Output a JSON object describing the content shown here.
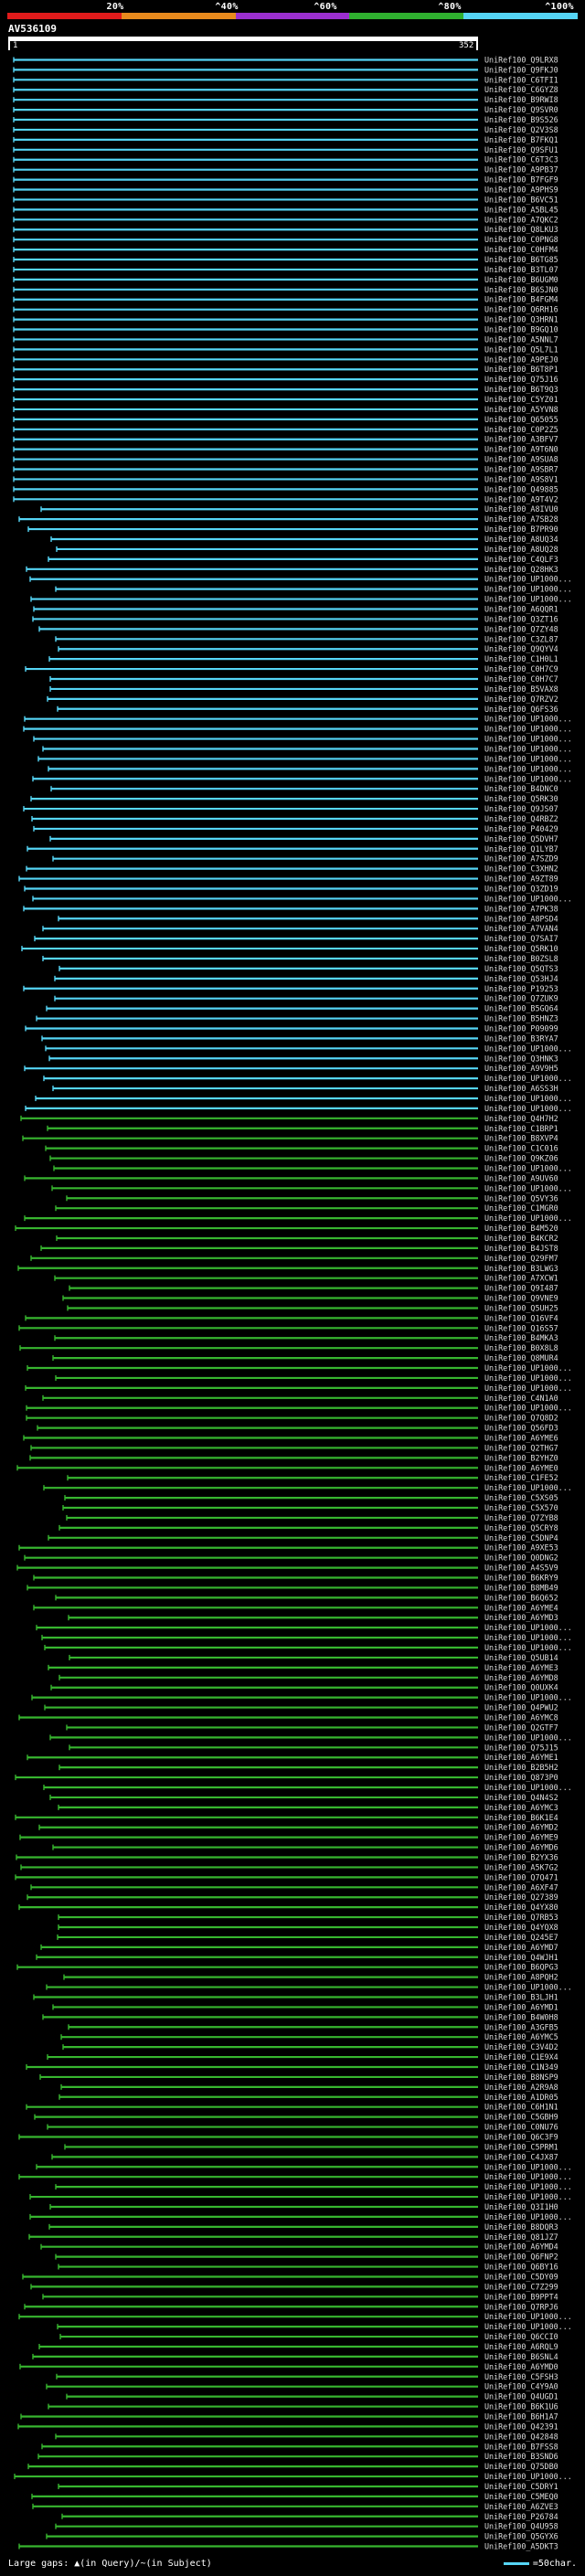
{
  "identity_scale": {
    "labels": [
      "20%",
      "^40%",
      "^60%",
      "^80%",
      "^100%"
    ],
    "colors": [
      "#e01b1b",
      "#e88a1d",
      "#9b2fcf",
      "#2fb02f",
      "#55d5f5"
    ]
  },
  "query": {
    "id": "AV536109",
    "start": "1",
    "end": "352"
  },
  "colors": {
    "cyan": "#55d5f5",
    "green": "#37b52f",
    "label": "#dcdcdc",
    "ruler": "#ffffff"
  },
  "hits": [
    "UniRef100_Q9LRX8",
    "UniRef100_Q9FKJ0",
    "UniRef100_C6TFI1",
    "UniRef100_C6GYZ8",
    "UniRef100_B9RWI8",
    "UniRef100_Q9SVR0",
    "UniRef100_B9S526",
    "UniRef100_Q2V3S8",
    "UniRef100_B7FKQ1",
    "UniRef100_Q9SFU1",
    "UniRef100_C6T3C3",
    "UniRef100_A9PB37",
    "UniRef100_B7FGF9",
    "UniRef100_A9PHS9",
    "UniRef100_B6VC51",
    "UniRef100_A5BL45",
    "UniRef100_A7QKC2",
    "UniRef100_Q8LKU3",
    "UniRef100_C0PNG8",
    "UniRef100_C0HFM4",
    "UniRef100_B6TG85",
    "UniRef100_B3TL07",
    "UniRef100_B6UGM0",
    "UniRef100_B6SJN0",
    "UniRef100_B4FGM4",
    "UniRef100_Q6RH16",
    "UniRef100_Q3HRN1",
    "UniRef100_B9GQ10",
    "UniRef100_A5NNL7",
    "UniRef100_Q5L7L1",
    "UniRef100_A9PEJ0",
    "UniRef100_B6T8P1",
    "UniRef100_Q75J16",
    "UniRef100_B6T9Q3",
    "UniRef100_C5YZ01",
    "UniRef100_A5YVN8",
    "UniRef100_Q65055",
    "UniRef100_C0P2Z5",
    "UniRef100_A3BFV7",
    "UniRef100_A9T6N0",
    "UniRef100_A9SUA8",
    "UniRef100_A9SBR7",
    "UniRef100_A9S8V1",
    "UniRef100_Q49885",
    "UniRef100_A9T4V2",
    "UniRef100_A8IVU0",
    "UniRef100_A7SB28",
    "UniRef100_B7PR90",
    "UniRef100_A8UQ34",
    "UniRef100_A8UQ28",
    "UniRef100_C4QLF3",
    "UniRef100_Q28HK3",
    "UniRef100_UP1000...",
    "UniRef100_UP1000...",
    "UniRef100_UP1000...",
    "UniRef100_A6QQR1",
    "UniRef100_Q3ZT16",
    "UniRef100_Q7ZY48",
    "UniRef100_C3ZL87",
    "UniRef100_Q9QYV4",
    "UniRef100_C1H0L1",
    "UniRef100_C0H7C9",
    "UniRef100_C0H7C7",
    "UniRef100_B5VAX8",
    "UniRef100_Q7RZV2",
    "UniRef100_Q6FS36",
    "UniRef100_UP1000...",
    "UniRef100_UP1000...",
    "UniRef100_UP1000...",
    "UniRef100_UP1000...",
    "UniRef100_UP1000...",
    "UniRef100_UP1000...",
    "UniRef100_UP1000...",
    "UniRef100_B4DNC0",
    "UniRef100_Q5RK30",
    "UniRef100_Q9JS07",
    "UniRef100_Q4RBZ2",
    "UniRef100_P40429",
    "UniRef100_Q5DVH7",
    "UniRef100_Q1LYB7",
    "UniRef100_A7SZD9",
    "UniRef100_C3XHN2",
    "UniRef100_A9ZT89",
    "UniRef100_Q3ZD19",
    "UniRef100_UP1000...",
    "UniRef100_A7PK38",
    "UniRef100_A8PSD4",
    "UniRef100_A7VAN4",
    "UniRef100_Q7SAI7",
    "UniRef100_Q5RK10",
    "UniRef100_B0ZSL8",
    "UniRef100_Q5QTS3",
    "UniRef100_Q53HJ4",
    "UniRef100_P19253",
    "UniRef100_Q7ZUK9",
    "UniRef100_B5GQ64",
    "UniRef100_B5HNZ3",
    "UniRef100_P09099",
    "UniRef100_B3RYA7",
    "UniRef100_UP1000...",
    "UniRef100_Q3HNK3",
    "UniRef100_A9V9H5",
    "UniRef100_UP1000...",
    "UniRef100_A6SS3H",
    "UniRef100_UP1000...",
    "UniRef100_UP1000...",
    "UniRef100_Q4H7H2",
    "UniRef100_C1BRP1",
    "UniRef100_B8XVP4",
    "UniRef100_C1C016",
    "UniRef100_Q9KZ06",
    "UniRef100_UP1000...",
    "UniRef100_A9UV60",
    "UniRef100_UP1000...",
    "UniRef100_Q5VY36",
    "UniRef100_C1MGR0",
    "UniRef100_UP1000...",
    "UniRef100_B4M520",
    "UniRef100_B4KCR2",
    "UniRef100_B4JST8",
    "UniRef100_Q29FM7",
    "UniRef100_B3LWG3",
    "UniRef100_A7XCW1",
    "UniRef100_Q9I487",
    "UniRef100_Q9VNE9",
    "UniRef100_Q5UH25",
    "UniRef100_Q16VF4",
    "UniRef100_Q16S57",
    "UniRef100_B4MKA3",
    "UniRef100_B0X8L8",
    "UniRef100_Q8MUR4",
    "UniRef100_UP1000...",
    "UniRef100_UP1000...",
    "UniRef100_UP1000...",
    "UniRef100_C4N1A0",
    "UniRef100_UP1000...",
    "UniRef100_Q7Q8D2",
    "UniRef100_Q56FD3",
    "UniRef100_A6YME6",
    "UniRef100_Q2THG7",
    "UniRef100_B2YHZ0",
    "UniRef100_A6YME0",
    "UniRef100_C1FE52",
    "UniRef100_UP1000...",
    "UniRef100_C5XS05",
    "UniRef100_C5X570",
    "UniRef100_Q7ZYB8",
    "UniRef100_Q5CRY8",
    "UniRef100_C5DNP4",
    "UniRef100_A9XE53",
    "UniRef100_Q0DNG2",
    "UniRef100_A4S5V9",
    "UniRef100_B6KRY9",
    "UniRef100_B8MB49",
    "UniRef100_B6Q652",
    "UniRef100_A6YME4",
    "UniRef100_A6YMD3",
    "UniRef100_UP1000...",
    "UniRef100_UP1000...",
    "UniRef100_UP1000...",
    "UniRef100_Q5UB14",
    "UniRef100_A6YME3",
    "UniRef100_A6YMD8",
    "UniRef100_Q0UXK4",
    "UniRef100_UP1000...",
    "UniRef100_Q4PWU2",
    "UniRef100_A6YMC8",
    "UniRef100_Q2GTF7",
    "UniRef100_UP1000...",
    "UniRef100_Q75J15",
    "UniRef100_A6YME1",
    "UniRef100_B2B5H2",
    "UniRef100_Q873P0",
    "UniRef100_UP1000...",
    "UniRef100_Q4N4S2",
    "UniRef100_A6YMC3",
    "UniRef100_B6K1E4",
    "UniRef100_A6YMD2",
    "UniRef100_A6YME9",
    "UniRef100_A6YMD6",
    "UniRef100_B2YX36",
    "UniRef100_A5K7G2",
    "UniRef100_Q7Q471",
    "UniRef100_A6XF47",
    "UniRef100_Q27389",
    "UniRef100_Q4YX80",
    "UniRef100_Q7RB53",
    "UniRef100_Q4YQX8",
    "UniRef100_Q245E7",
    "UniRef100_A6YMD7",
    "UniRef100_Q4WJH1",
    "UniRef100_B6QPG3",
    "UniRef100_A8PQH2",
    "UniRef100_UP1000...",
    "UniRef100_B3LJH1",
    "UniRef100_A6YMD1",
    "UniRef100_B4W0H8",
    "UniRef100_A3GFB5",
    "UniRef100_A6YMC5",
    "UniRef100_C3V4D2",
    "UniRef100_C1E9X4",
    "UniRef100_C1N349",
    "UniRef100_B8NSP9",
    "UniRef100_A2R9A8",
    "UniRef100_A1DR05",
    "UniRef100_C6H1N1",
    "UniRef100_C5GBH9",
    "UniRef100_C0NU76",
    "UniRef100_Q6C3F9",
    "UniRef100_C5PRM1",
    "UniRef100_C4JX87",
    "UniRef100_UP1000...",
    "UniRef100_UP1000...",
    "UniRef100_UP1000...",
    "UniRef100_UP1000...",
    "UniRef100_Q3I1H0",
    "UniRef100_UP1000...",
    "UniRef100_B8DQR3",
    "UniRef100_Q81JZ7",
    "UniRef100_A6YMD4",
    "UniRef100_Q6FNP2",
    "UniRef100_Q6BY16",
    "UniRef100_C5DY09",
    "UniRef100_C7Z299",
    "UniRef100_B9PPT4",
    "UniRef100_Q7RPJ6",
    "UniRef100_UP1000...",
    "UniRef100_UP1000...",
    "UniRef100_Q6CCI0",
    "UniRef100_A6RQL9",
    "UniRef100_B6SNL4",
    "UniRef100_A6YMD0",
    "UniRef100_C5FSH3",
    "UniRef100_C4Y9A0",
    "UniRef100_Q4UGD1",
    "UniRef100_B6K1U6",
    "UniRef100_B6H1A7",
    "UniRef100_Q42391",
    "UniRef100_Q42848",
    "UniRef100_B7FSS8",
    "UniRef100_B3SND6",
    "UniRef100_Q75DB0",
    "UniRef100_UP1000...",
    "UniRef100_C5DRY1",
    "UniRef100_C5MEQ0",
    "UniRef100_A6ZVE3",
    "UniRef100_P26784",
    "UniRef100_Q4U958",
    "UniRef100_Q5GYX6",
    "UniRef100_A5DKT3"
  ],
  "footer": {
    "gaps_legend": "Large gaps: ▲(in Query)/~(in Subject)",
    "scale_label": "=50char."
  }
}
